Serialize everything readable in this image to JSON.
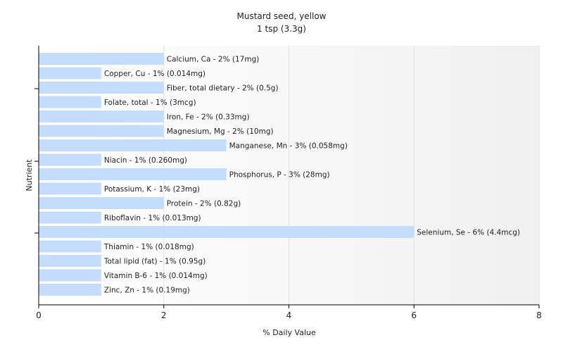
{
  "chart_data": {
    "type": "bar",
    "orientation": "horizontal",
    "title": "Mustard seed, yellow",
    "subtitle": "1 tsp (3.3g)",
    "xlabel": "% Daily Value",
    "ylabel": "Nutrient",
    "xlim": [
      0,
      8
    ],
    "xticks": [
      "0",
      "2",
      "4",
      "6",
      "8"
    ],
    "grid": true,
    "bar_color": "#c5dcfc",
    "categories": [
      "Calcium, Ca",
      "Copper, Cu",
      "Fiber, total dietary",
      "Folate, total",
      "Iron, Fe",
      "Magnesium, Mg",
      "Manganese, Mn",
      "Niacin",
      "Phosphorus, P",
      "Potassium, K",
      "Protein",
      "Riboflavin",
      "Selenium, Se",
      "Thiamin",
      "Total lipid (fat)",
      "Vitamin B-6",
      "Zinc, Zn"
    ],
    "values": [
      2,
      1,
      2,
      1,
      2,
      2,
      3,
      1,
      3,
      1,
      2,
      1,
      6,
      1,
      1,
      1,
      1
    ],
    "labels": [
      "Calcium, Ca - 2% (17mg)",
      "Copper, Cu - 1% (0.014mg)",
      "Fiber, total dietary - 2% (0.5g)",
      "Folate, total - 1% (3mcg)",
      "Iron, Fe - 2% (0.33mg)",
      "Magnesium, Mg - 2% (10mg)",
      "Manganese, Mn - 3% (0.058mg)",
      "Niacin - 1% (0.260mg)",
      "Phosphorus, P - 3% (28mg)",
      "Potassium, K - 1% (23mg)",
      "Protein - 2% (0.82g)",
      "Riboflavin - 1% (0.013mg)",
      "Selenium, Se - 6% (4.4mcg)",
      "Thiamin - 1% (0.018mg)",
      "Total lipid (fat) - 1% (0.95g)",
      "Vitamin B-6 - 1% (0.014mg)",
      "Zinc, Zn - 1% (0.19mg)"
    ]
  }
}
